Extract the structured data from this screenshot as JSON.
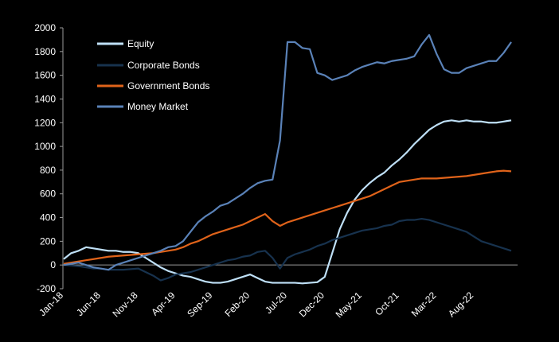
{
  "chart_data": {
    "type": "line",
    "title": "",
    "xlabel": "",
    "ylabel": "",
    "ylim": [
      -200,
      2000
    ],
    "yticks": [
      -200,
      0,
      200,
      400,
      600,
      800,
      1000,
      1200,
      1400,
      1600,
      1800,
      2000
    ],
    "ytick_labels": [
      "-200",
      "0",
      "200",
      "400",
      "600",
      "800",
      "1000",
      "1200",
      "1400",
      "1600",
      "1800",
      "2000"
    ],
    "x_start": "Jan-18",
    "x_end": "Dec-22",
    "xticks": [
      {
        "label": "Jan-18",
        "i": 0
      },
      {
        "label": "Jun-18",
        "i": 5
      },
      {
        "label": "Nov-18",
        "i": 10
      },
      {
        "label": "Apr-19",
        "i": 15
      },
      {
        "label": "Sep-19",
        "i": 20
      },
      {
        "label": "Feb-20",
        "i": 25
      },
      {
        "label": "Jul-20",
        "i": 30
      },
      {
        "label": "Dec-20",
        "i": 35
      },
      {
        "label": "May-21",
        "i": 40
      },
      {
        "label": "Oct-21",
        "i": 45
      },
      {
        "label": "Mar-22",
        "i": 50
      },
      {
        "label": "Aug-22",
        "i": 55
      }
    ],
    "grid": false,
    "legend": "top-left",
    "series": [
      {
        "name": "Equity",
        "color": "#bfe0f7",
        "values": [
          50,
          100,
          120,
          150,
          140,
          130,
          120,
          120,
          110,
          110,
          100,
          60,
          20,
          -20,
          -50,
          -70,
          -90,
          -100,
          -120,
          -140,
          -150,
          -150,
          -140,
          -120,
          -100,
          -80,
          -110,
          -140,
          -150,
          -150,
          -150,
          -150,
          -155,
          -150,
          -145,
          -100,
          100,
          300,
          440,
          550,
          630,
          690,
          740,
          780,
          840,
          890,
          950,
          1020,
          1080,
          1140,
          1180,
          1210,
          1220,
          1210,
          1220,
          1210,
          1210,
          1200,
          1200,
          1210,
          1220
        ]
      },
      {
        "name": "Corporate Bonds",
        "color": "#17324e",
        "values": [
          0,
          -5,
          -10,
          -20,
          -30,
          -30,
          -40,
          -40,
          -40,
          -35,
          -30,
          -60,
          -90,
          -130,
          -110,
          -80,
          -70,
          -60,
          -40,
          -20,
          0,
          20,
          40,
          50,
          70,
          80,
          110,
          120,
          60,
          -30,
          60,
          90,
          110,
          130,
          160,
          180,
          210,
          230,
          250,
          270,
          290,
          300,
          310,
          330,
          340,
          370,
          380,
          380,
          390,
          380,
          360,
          340,
          320,
          300,
          280,
          240,
          200,
          180,
          160,
          140,
          120
        ]
      },
      {
        "name": "Government Bonds",
        "color": "#e0631a",
        "values": [
          10,
          20,
          30,
          40,
          50,
          60,
          70,
          75,
          80,
          85,
          90,
          95,
          100,
          110,
          120,
          130,
          150,
          180,
          200,
          230,
          260,
          280,
          300,
          320,
          340,
          370,
          400,
          430,
          370,
          330,
          360,
          380,
          400,
          420,
          440,
          460,
          480,
          500,
          520,
          540,
          560,
          580,
          610,
          640,
          670,
          700,
          710,
          720,
          730,
          730,
          730,
          735,
          740,
          745,
          750,
          760,
          770,
          780,
          790,
          795,
          790
        ]
      },
      {
        "name": "Money Market",
        "color": "#5a82b8",
        "values": [
          0,
          10,
          20,
          0,
          -20,
          -30,
          -40,
          0,
          20,
          40,
          60,
          80,
          100,
          120,
          150,
          160,
          200,
          280,
          360,
          410,
          450,
          500,
          520,
          560,
          600,
          650,
          690,
          710,
          720,
          1050,
          1880,
          1880,
          1830,
          1820,
          1620,
          1600,
          1560,
          1580,
          1600,
          1640,
          1670,
          1690,
          1710,
          1700,
          1720,
          1730,
          1740,
          1760,
          1860,
          1940,
          1780,
          1650,
          1620,
          1620,
          1660,
          1680,
          1700,
          1720,
          1720,
          1790,
          1880
        ]
      }
    ]
  }
}
